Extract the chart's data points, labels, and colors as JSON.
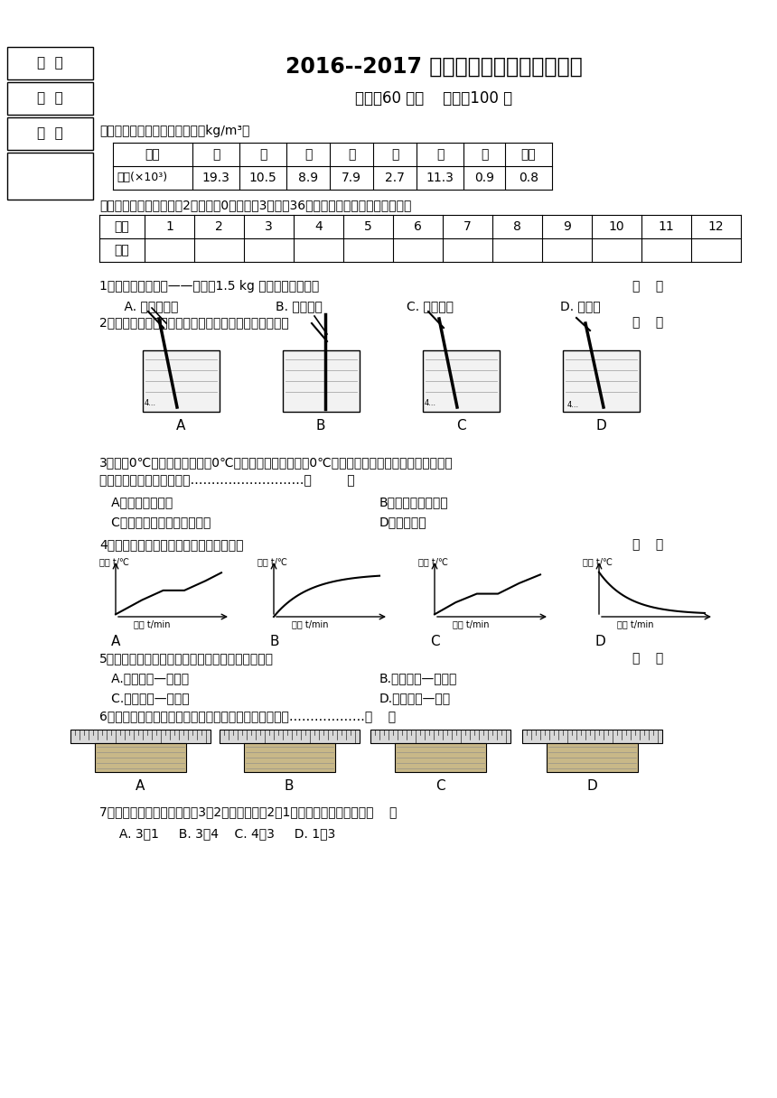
{
  "title": "2016--2017 八年级物理上学期期中试卷",
  "subtitle": "时间：60 分钟    满分：100 分",
  "bg_color": "#ffffff",
  "density_table_note": "在常温常压下一些物质的密度（kg/m³）",
  "density_table_header": [
    "物质",
    "金",
    "银",
    "铜",
    "铁",
    "铝",
    "铅",
    "冰",
    "酒精"
  ],
  "density_row_label": "密度(×10³)",
  "density_values": [
    "19.3",
    "10.5",
    "8.9",
    "7.9",
    "2.7",
    "11.3",
    "0.9",
    "0.8"
  ],
  "section1_header": "一、选择（多选题漏选得2分，选错0分，每题3分，计36分，正确答案填入下面表格中）",
  "answer_row1": [
    "题号",
    "1",
    "2",
    "3",
    "4",
    "5",
    "6",
    "7",
    "8",
    "9",
    "10",
    "11",
    "12"
  ],
  "answer_row2": [
    "答案",
    "",
    "",
    "",
    "",
    "",
    "",
    "",
    "",
    "",
    "",
    "",
    ""
  ],
  "q1": "1、感受身边的物理——质量为1.5 kg 的物体最可能的是",
  "q1_bracket": "（    ）",
  "q1_choices_A": "    A. 一个乒乓球",
  "q1_choices_B": "B. 一只母鸡",
  "q1_choices_C": "C. 一张课桌",
  "q1_choices_D": "D. 一头牛",
  "q2": "2、关于温度计使用时的正确放法，下图中表示正确的是",
  "q2_bracket": "（    ）",
  "q3_line1": "3、小块0℃的冰，投入一大盆0℃的水中（周围空气也是0℃），过了一段时间。（汽化、升华忽",
  "q3_line2": "略不计）下列说法正确的是………………………（         ）",
  "q3_A": "   A、冰会发生熔化",
  "q3_B": "B、一部分水会凝固",
  "q3_C": "   C、冰和水的多少都不会变化",
  "q3_D": "D、无法判断",
  "q4": "4、如图所示，描述晶体熔化过程的曲线是",
  "q4_bracket": "（    ）",
  "graph_ylabel": "温度 t/℃",
  "graph_xlabel": "时间 t/min",
  "q5_line1": "5、下列美妙的自然现象与对应的物态变化正确的是",
  "q5_bracket": "（    ）",
  "q5_A": "   A.晶莹的露—液化；",
  "q5_B": "B.轻柔的雪—升华；",
  "q5_C": "   C.飘渺的雾—熔化；",
  "q5_D": "D.凝重的霜—凝固",
  "q6": "6、如图用厚刻尺测量木块的长度，其中正确的测量图是………………（    ）",
  "q7_line1": "7、有两块金属，质量之比是3：2，体积之比是2：1，则它们的密度之比是（    ）",
  "q7_choices": "     A. 3：1     B. 3：4    C. 4：3     D. 1：3",
  "left_box_labels": [
    "班  级",
    "姓  名",
    "考  号"
  ]
}
